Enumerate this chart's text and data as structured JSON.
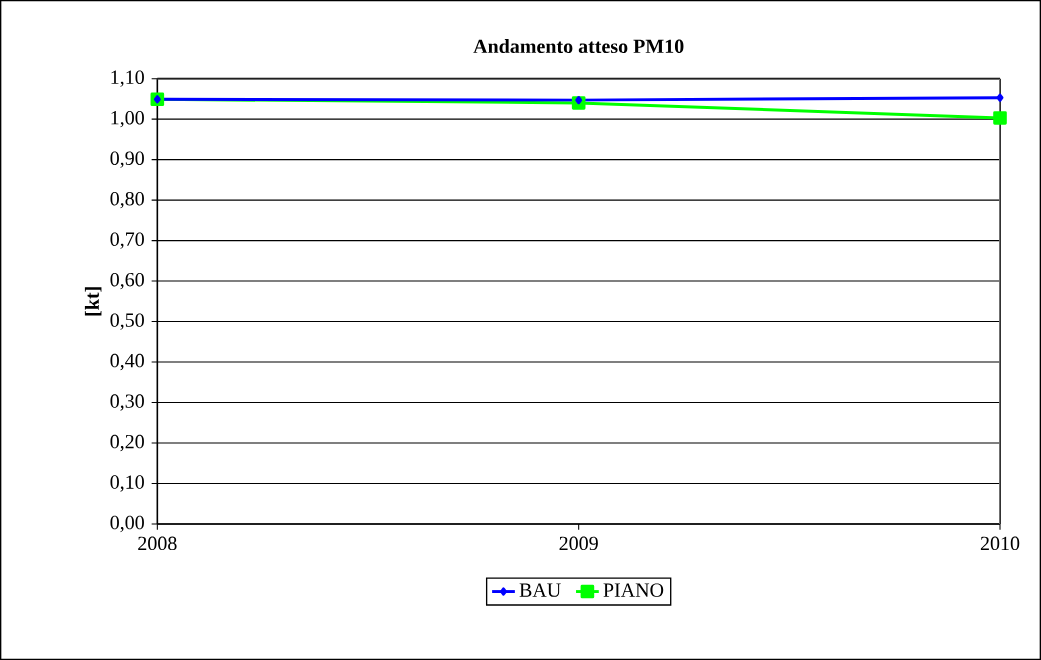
{
  "chart_data": {
    "type": "line",
    "title": "Andamento atteso PM10",
    "ylabel": "[kt]",
    "categories": [
      "2008",
      "2009",
      "2010"
    ],
    "series": [
      {
        "name": "BAU",
        "color": "#0000ff",
        "marker": "diamond",
        "values": [
          1.049,
          1.047,
          1.053
        ]
      },
      {
        "name": "PIANO",
        "color": "#00ff00",
        "marker": "square",
        "values": [
          1.049,
          1.04,
          1.003
        ]
      }
    ],
    "ylim": [
      0,
      1.1
    ],
    "yticks": [
      {
        "value": 0,
        "label": "0,00"
      },
      {
        "value": 0.1,
        "label": "0,10"
      },
      {
        "value": 0.2,
        "label": "0,20"
      },
      {
        "value": 0.3,
        "label": "0,30"
      },
      {
        "value": 0.4,
        "label": "0,40"
      },
      {
        "value": 0.5,
        "label": "0,50"
      },
      {
        "value": 0.6,
        "label": "0,60"
      },
      {
        "value": 0.7,
        "label": "0,70"
      },
      {
        "value": 0.8,
        "label": "0,80"
      },
      {
        "value": 0.9,
        "label": "0,90"
      },
      {
        "value": 1.0,
        "label": "1,00"
      },
      {
        "value": 1.1,
        "label": "1,10"
      }
    ],
    "grid": "y",
    "legend": "bottom",
    "line_style": "solid"
  }
}
